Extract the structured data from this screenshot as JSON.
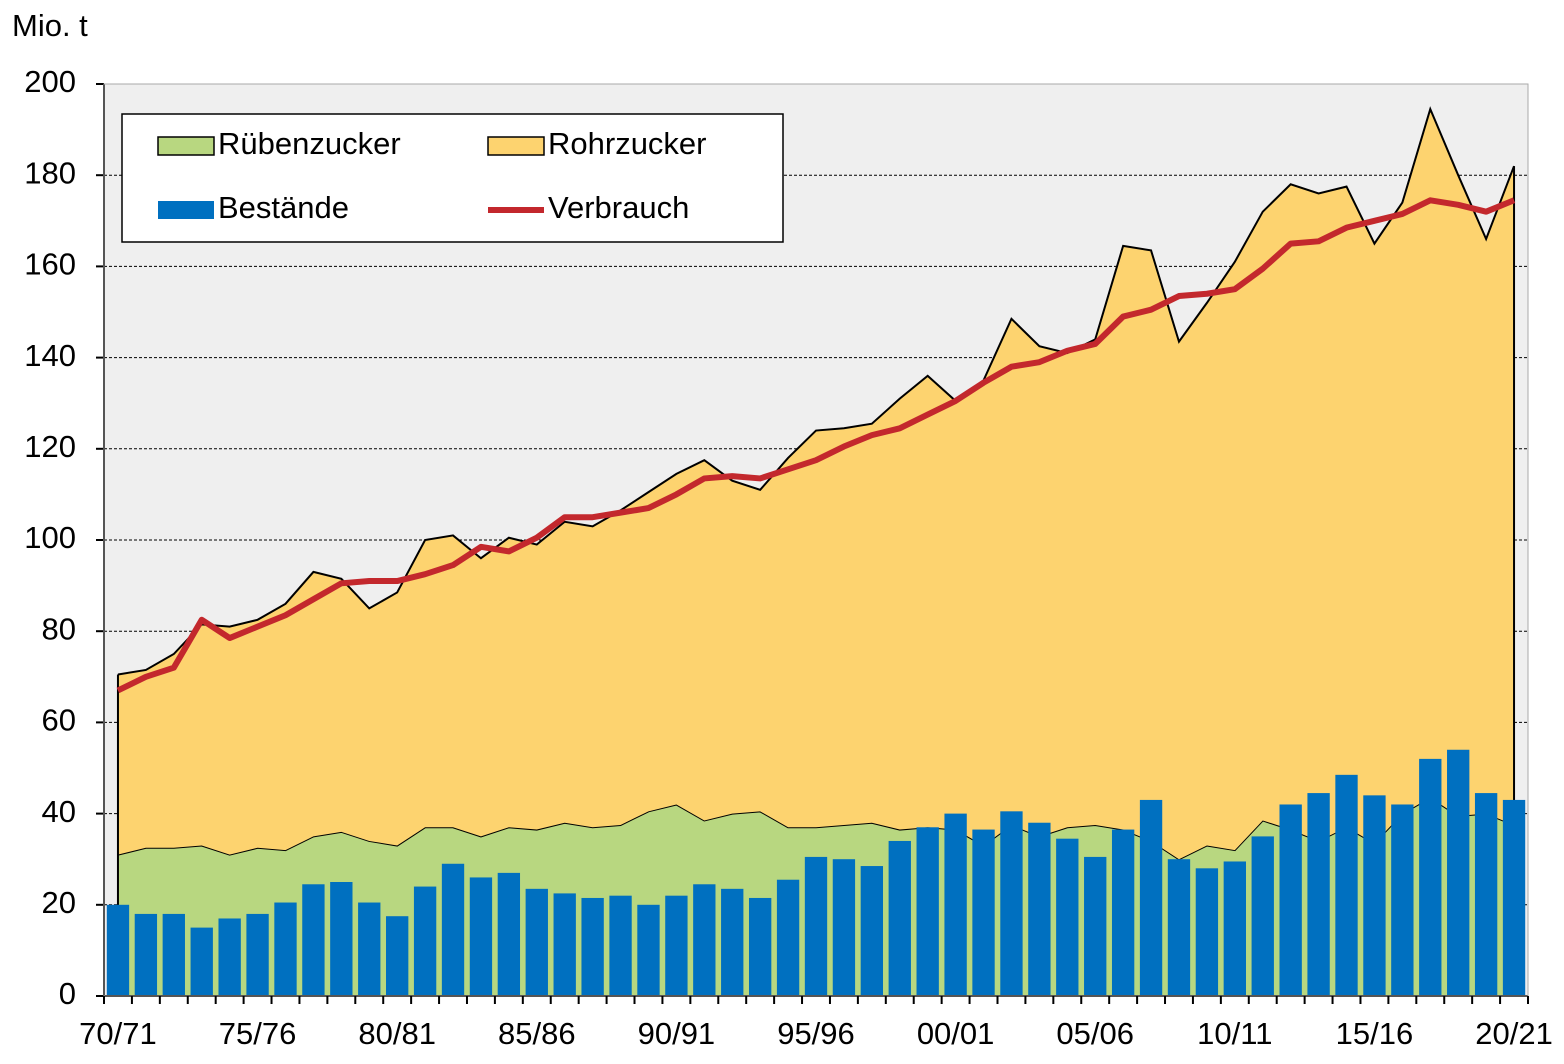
{
  "chart_data": {
    "type": "combo",
    "y_label": "Mio. t",
    "categories": [
      "70/71",
      null,
      null,
      null,
      null,
      "75/76",
      null,
      null,
      null,
      null,
      "80/81",
      null,
      null,
      null,
      null,
      "85/86",
      null,
      null,
      null,
      null,
      "90/91",
      null,
      null,
      null,
      null,
      "95/96",
      null,
      null,
      null,
      null,
      "00/01",
      null,
      null,
      null,
      null,
      "05/06",
      null,
      null,
      null,
      null,
      "10/11",
      null,
      null,
      null,
      null,
      "15/16",
      null,
      null,
      null,
      null,
      "20/21"
    ],
    "series": [
      {
        "name": "Rübenzucker",
        "type": "area",
        "color": "#b8d780",
        "values": [
          31,
          32.5,
          32.5,
          33,
          31,
          32.5,
          32,
          35,
          36,
          34,
          33,
          37,
          37,
          35,
          37,
          36.5,
          38,
          37,
          37.5,
          40.5,
          42,
          38.5,
          40,
          40.5,
          37,
          37,
          37.5,
          38,
          36.5,
          37,
          36.5,
          33,
          37.5,
          35,
          37,
          37.5,
          36.5,
          34,
          30,
          33,
          32,
          38.5,
          36.5,
          34,
          37,
          33.5,
          40,
          43.5,
          39.5,
          40,
          37.5
        ]
      },
      {
        "name": "Rohrzucker",
        "type": "area",
        "color": "#fdd36f",
        "values": [
          39.5,
          39,
          42.5,
          48.5,
          50,
          50,
          54,
          58,
          55.5,
          51,
          55.5,
          63,
          64,
          61,
          63.5,
          62.5,
          66,
          66,
          69,
          70,
          72.5,
          79,
          73,
          70.5,
          81,
          87,
          87,
          87.5,
          94.5,
          99,
          94,
          102,
          111,
          107.5,
          104,
          106.5,
          128,
          129.5,
          113.5,
          119,
          129,
          133.5,
          141.5,
          142,
          140.5,
          131.5,
          134,
          151,
          140.5,
          126,
          144.5
        ]
      },
      {
        "name": "Bestände",
        "type": "bar",
        "color": "#0070c0",
        "values": [
          20,
          18,
          18,
          15,
          17,
          18,
          20.5,
          24.5,
          25,
          20.5,
          17.5,
          24,
          29,
          26,
          27,
          23.5,
          22.5,
          21.5,
          22,
          20,
          22,
          24.5,
          23.5,
          21.5,
          25.5,
          30.5,
          30,
          28.5,
          34,
          37,
          40,
          36.5,
          40.5,
          38,
          34.5,
          30.5,
          36.5,
          43,
          30,
          28,
          29.5,
          35,
          42,
          44.5,
          48.5,
          44,
          42,
          52,
          54,
          44.5,
          43
        ]
      },
      {
        "name": "Verbrauch",
        "type": "line",
        "color": "#c3282d",
        "values": [
          67,
          70,
          72,
          82.5,
          78.5,
          81,
          83.5,
          87,
          90.5,
          91,
          91,
          92.5,
          94.5,
          98.5,
          97.5,
          100.5,
          105,
          105,
          106,
          107,
          110,
          113.5,
          114,
          113.5,
          115.5,
          117.5,
          120.5,
          123,
          124.5,
          127.5,
          130.5,
          134.5,
          138,
          139,
          141.5,
          143,
          149,
          150.5,
          153.5,
          154,
          155,
          159.5,
          165,
          165.5,
          168.5,
          170,
          171.5,
          174.5,
          173.5,
          172,
          174.5
        ]
      }
    ],
    "ylim": [
      0,
      200
    ],
    "yticks": [
      0,
      20,
      40,
      60,
      80,
      100,
      120,
      140,
      160,
      180,
      200
    ],
    "grid": true,
    "legend": "top-left"
  }
}
